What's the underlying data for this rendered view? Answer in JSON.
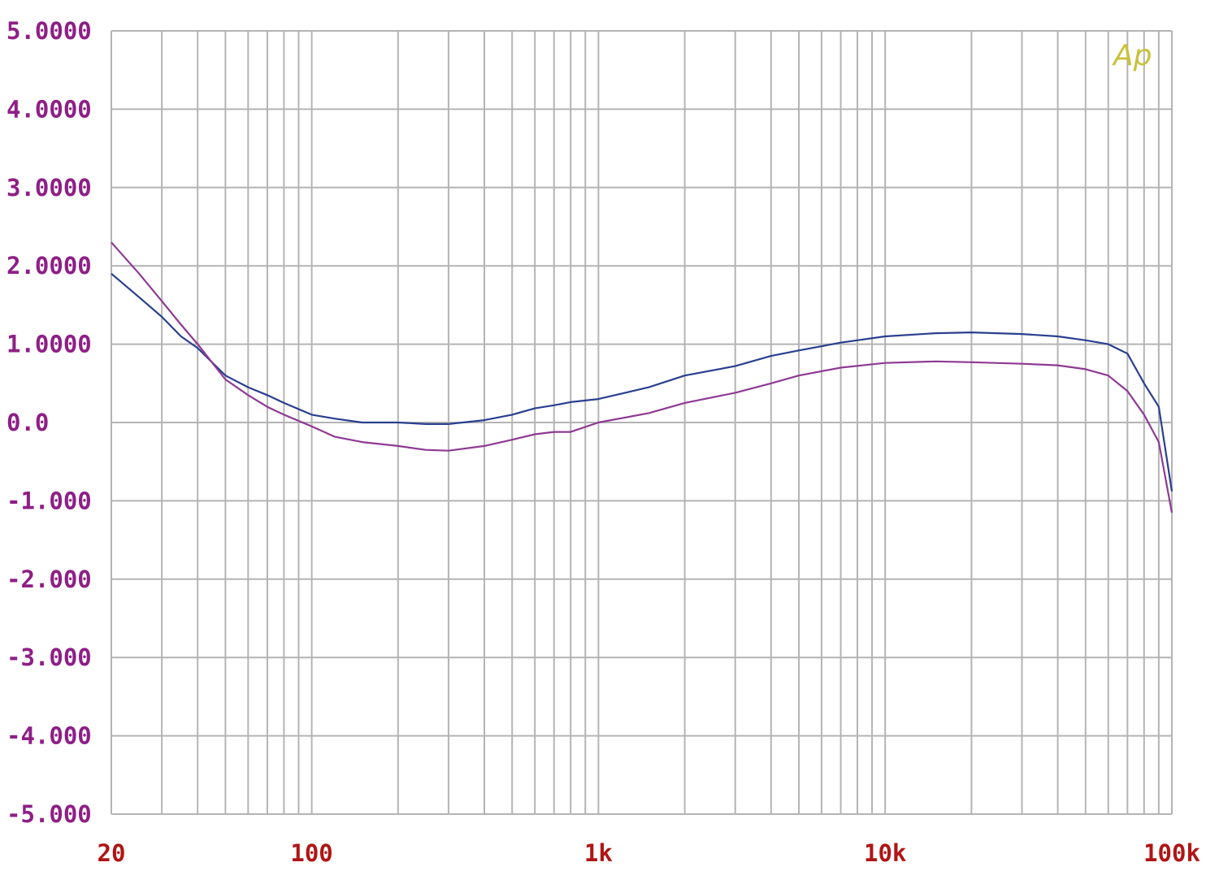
{
  "chart_data": {
    "type": "line",
    "title": "",
    "xlabel": "",
    "ylabel": "",
    "x_scale": "log",
    "xlim": [
      20,
      100000
    ],
    "ylim": [
      -5,
      5
    ],
    "grid": true,
    "logo_text": "Ap",
    "colors": {
      "grid": "#b4b4b4",
      "y_tick_label": "#8e1f86",
      "x_tick_label": "#b01515",
      "logo": "#c8c23a"
    },
    "y_ticks": [
      {
        "value": 5,
        "label": "5.0000"
      },
      {
        "value": 4,
        "label": "4.0000"
      },
      {
        "value": 3,
        "label": "3.0000"
      },
      {
        "value": 2,
        "label": "2.0000"
      },
      {
        "value": 1,
        "label": "1.0000"
      },
      {
        "value": 0,
        "label": "0.0"
      },
      {
        "value": -1,
        "label": "-1.000"
      },
      {
        "value": -2,
        "label": "-2.000"
      },
      {
        "value": -3,
        "label": "-3.000"
      },
      {
        "value": -4,
        "label": "-4.000"
      },
      {
        "value": -5,
        "label": "-5.000"
      }
    ],
    "x_ticks": [
      {
        "value": 20,
        "label": "20"
      },
      {
        "value": 100,
        "label": "100"
      },
      {
        "value": 1000,
        "label": "1k"
      },
      {
        "value": 10000,
        "label": "10k"
      },
      {
        "value": 100000,
        "label": "100k"
      }
    ],
    "series": [
      {
        "color": "#2a3f8f",
        "points": [
          [
            20,
            1.9
          ],
          [
            25,
            1.6
          ],
          [
            30,
            1.35
          ],
          [
            35,
            1.1
          ],
          [
            40,
            0.95
          ],
          [
            50,
            0.6
          ],
          [
            60,
            0.45
          ],
          [
            70,
            0.35
          ],
          [
            80,
            0.25
          ],
          [
            100,
            0.1
          ],
          [
            120,
            0.05
          ],
          [
            150,
            0.0
          ],
          [
            200,
            0.0
          ],
          [
            250,
            -0.02
          ],
          [
            300,
            -0.02
          ],
          [
            400,
            0.03
          ],
          [
            500,
            0.1
          ],
          [
            600,
            0.18
          ],
          [
            700,
            0.22
          ],
          [
            800,
            0.26
          ],
          [
            1000,
            0.3
          ],
          [
            1500,
            0.45
          ],
          [
            2000,
            0.6
          ],
          [
            3000,
            0.72
          ],
          [
            4000,
            0.85
          ],
          [
            5000,
            0.92
          ],
          [
            7000,
            1.02
          ],
          [
            10000,
            1.1
          ],
          [
            15000,
            1.14
          ],
          [
            20000,
            1.15
          ],
          [
            30000,
            1.13
          ],
          [
            40000,
            1.1
          ],
          [
            50000,
            1.05
          ],
          [
            60000,
            1.0
          ],
          [
            70000,
            0.88
          ],
          [
            80000,
            0.5
          ],
          [
            90000,
            0.2
          ],
          [
            100000,
            -0.88
          ]
        ]
      },
      {
        "color": "#8e3a93",
        "points": [
          [
            20,
            2.3
          ],
          [
            25,
            1.9
          ],
          [
            30,
            1.55
          ],
          [
            35,
            1.25
          ],
          [
            40,
            1.0
          ],
          [
            50,
            0.55
          ],
          [
            60,
            0.35
          ],
          [
            70,
            0.2
          ],
          [
            80,
            0.1
          ],
          [
            100,
            -0.05
          ],
          [
            120,
            -0.18
          ],
          [
            150,
            -0.25
          ],
          [
            200,
            -0.3
          ],
          [
            250,
            -0.35
          ],
          [
            300,
            -0.36
          ],
          [
            400,
            -0.3
          ],
          [
            500,
            -0.22
          ],
          [
            600,
            -0.15
          ],
          [
            700,
            -0.12
          ],
          [
            800,
            -0.12
          ],
          [
            1000,
            0.0
          ],
          [
            1500,
            0.12
          ],
          [
            2000,
            0.25
          ],
          [
            3000,
            0.38
          ],
          [
            4000,
            0.5
          ],
          [
            5000,
            0.6
          ],
          [
            7000,
            0.7
          ],
          [
            10000,
            0.76
          ],
          [
            15000,
            0.78
          ],
          [
            20000,
            0.77
          ],
          [
            30000,
            0.75
          ],
          [
            40000,
            0.73
          ],
          [
            50000,
            0.68
          ],
          [
            60000,
            0.6
          ],
          [
            70000,
            0.4
          ],
          [
            80000,
            0.1
          ],
          [
            90000,
            -0.25
          ],
          [
            100000,
            -1.15
          ]
        ]
      }
    ]
  }
}
